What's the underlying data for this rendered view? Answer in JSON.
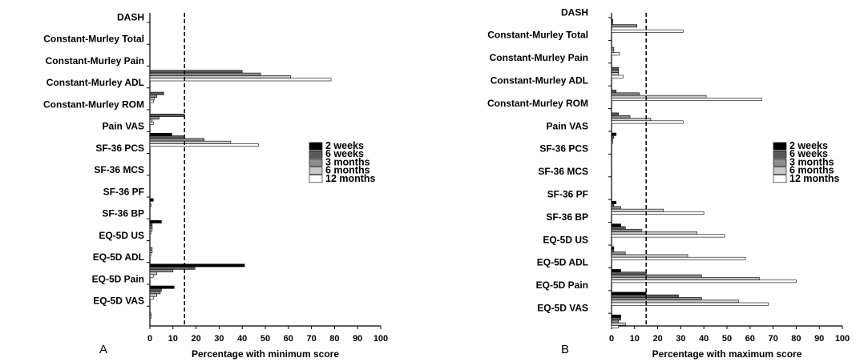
{
  "chart_data": [
    {
      "type": "bar",
      "panel": "A",
      "xlabel": "Percentage with minimum score",
      "xlim": [
        0,
        100
      ],
      "xticks": [
        0,
        10,
        20,
        30,
        40,
        50,
        60,
        70,
        80,
        90,
        100
      ],
      "reference_line": 15,
      "categories": [
        "DASH",
        "Constant-Murley Total",
        "Constant-Murley Pain",
        "Constant-Murley ADL",
        "Constant-Murley ROM",
        "Pain VAS",
        "SF-36 PCS",
        "SF-36 MCS",
        "SF-36 PF",
        "SF-36 BP",
        "EQ-5D US",
        "EQ-5D ADL",
        "EQ-5D Pain",
        "EQ-5D VAS"
      ],
      "series": [
        {
          "name": "2 weeks",
          "color": "#000000",
          "values": [
            0,
            0,
            0,
            0,
            0,
            9.5,
            0,
            0,
            1.5,
            5,
            0,
            41,
            10.5,
            0
          ]
        },
        {
          "name": "6 weeks",
          "color": "#5a5a5a",
          "values": [
            0,
            0,
            40,
            6,
            15,
            14.5,
            0,
            0,
            0,
            1,
            0,
            19.5,
            5,
            0
          ]
        },
        {
          "name": "3 months",
          "color": "#8c8c8c",
          "values": [
            0,
            0,
            48,
            3,
            4,
            23.5,
            0,
            0,
            0.5,
            1,
            1,
            10,
            4.5,
            0.5
          ]
        },
        {
          "name": "6 months",
          "color": "#c8c8c8",
          "values": [
            0,
            0,
            61,
            2,
            1,
            35,
            0,
            0,
            0,
            1,
            1,
            3,
            3,
            0.5
          ]
        },
        {
          "name": "12 months",
          "color": "#ffffff",
          "values": [
            0,
            0,
            78.5,
            1.5,
            1.5,
            47,
            0,
            0,
            0,
            0.5,
            0.5,
            1.5,
            1.5,
            0
          ]
        }
      ]
    },
    {
      "type": "bar",
      "panel": "B",
      "xlabel": "Percentage with maximum score",
      "xlim": [
        0,
        100
      ],
      "xticks": [
        0,
        10,
        20,
        30,
        40,
        50,
        60,
        70,
        80,
        90,
        100
      ],
      "reference_line": 15,
      "categories": [
        "DASH",
        "Constant-Murley Total",
        "Constant-Murley Pain",
        "Constant-Murley ADL",
        "Constant-Murley ROM",
        "Pain VAS",
        "SF-36 PCS",
        "SF-36 MCS",
        "SF-36 PF",
        "SF-36 BP",
        "EQ-5D US",
        "EQ-5D ADL",
        "EQ-5D Pain",
        "EQ-5D VAS"
      ],
      "series": [
        {
          "name": "2 weeks",
          "color": "#000000",
          "values": [
            0.5,
            0,
            0,
            0,
            0,
            2,
            0,
            0,
            2,
            4,
            1,
            4,
            15,
            4
          ]
        },
        {
          "name": "6 weeks",
          "color": "#5a5a5a",
          "values": [
            0.5,
            0,
            3,
            2,
            3,
            1,
            0,
            0,
            1,
            6,
            1,
            15,
            29,
            4
          ]
        },
        {
          "name": "3 months",
          "color": "#8c8c8c",
          "values": [
            11,
            1,
            3,
            12,
            8,
            0.5,
            0,
            0,
            4,
            13,
            6,
            39,
            39,
            3
          ]
        },
        {
          "name": "6 months",
          "color": "#c8c8c8",
          "values": [
            0,
            1,
            3,
            41,
            17,
            0.5,
            0,
            0,
            22.5,
            37,
            33,
            64,
            55,
            6
          ]
        },
        {
          "name": "12 months",
          "color": "#ffffff",
          "values": [
            31,
            3.5,
            5,
            65,
            31,
            0,
            0,
            0,
            40,
            49,
            58,
            80,
            68,
            3
          ]
        }
      ]
    }
  ]
}
